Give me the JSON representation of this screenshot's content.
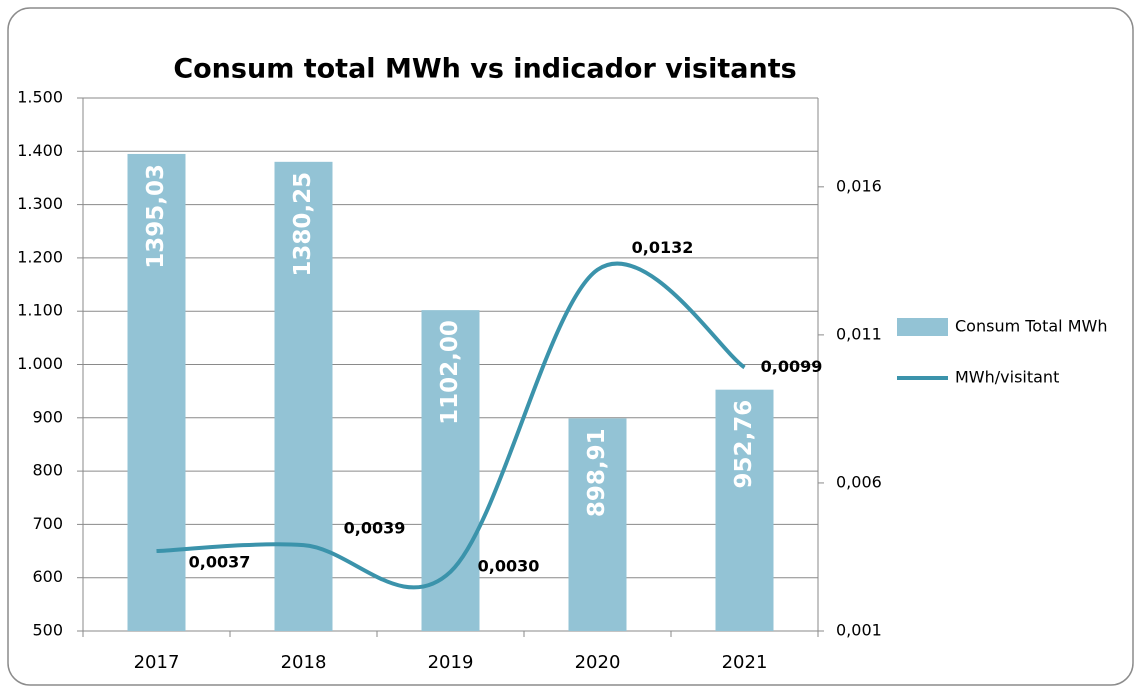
{
  "chart_data": {
    "type": "bar",
    "title": "Consum total MWh vs indicador visitants",
    "categories": [
      "2017",
      "2018",
      "2019",
      "2020",
      "2021"
    ],
    "series": [
      {
        "name": "Consum Total MWh",
        "type": "bar",
        "color": "#93c3d5",
        "values": [
          1395.03,
          1380.25,
          1102.0,
          898.91,
          952.76
        ],
        "value_labels": [
          "1395,03",
          "1380,25",
          "1102,00",
          "898,91",
          "952,76"
        ]
      },
      {
        "name": "MWh/visitant",
        "type": "line",
        "axis": "y2",
        "color": "#3b93ab",
        "values": [
          0.0037,
          0.0039,
          0.003,
          0.0132,
          0.0099
        ],
        "value_labels": [
          "0,0037",
          "0,0039",
          "0,0030",
          "0,0132",
          "0,0099"
        ]
      }
    ],
    "ylim": [
      500,
      1500
    ],
    "yticks": [
      500,
      600,
      700,
      800,
      900,
      {
        "value": 1000,
        "label": "1.000"
      },
      {
        "value": 1100,
        "label": "1.100"
      },
      {
        "value": 1200,
        "label": "1.200"
      },
      {
        "value": 1300,
        "label": "1.300"
      },
      {
        "value": 1400,
        "label": "1.400"
      },
      {
        "value": 1500,
        "label": "1.500"
      }
    ],
    "y2lim": [
      0.001,
      0.019
    ],
    "y2ticks": [
      {
        "value": 0.001,
        "label": "0,001"
      },
      {
        "value": 0.006,
        "label": "0,006"
      },
      {
        "value": 0.011,
        "label": "0,011"
      },
      {
        "value": 0.016,
        "label": "0,016"
      }
    ],
    "grid": true,
    "legend": "right"
  }
}
